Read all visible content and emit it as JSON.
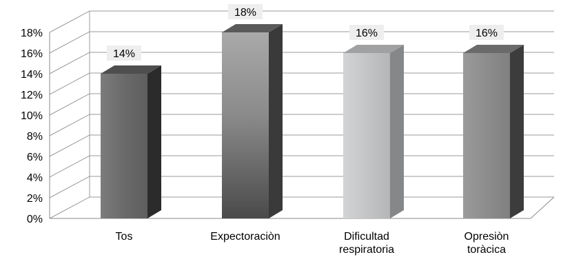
{
  "chart_data": {
    "type": "bar",
    "title": "",
    "xlabel": "",
    "ylabel": "",
    "categories": [
      "Tos",
      "Expectoraciòn",
      "Dificultad respiratoria",
      "Opresiòn toràcica"
    ],
    "category_lines": [
      [
        "Tos"
      ],
      [
        "Expectoraciòn"
      ],
      [
        "Dificultad",
        "respiratoria"
      ],
      [
        "Opresiòn",
        "toràcica"
      ]
    ],
    "values": [
      14,
      18,
      16,
      16
    ],
    "data_labels": [
      "14%",
      "18%",
      "16%",
      "16%"
    ],
    "ylim": [
      0,
      18
    ],
    "yticks": [
      "0%",
      "2%",
      "4%",
      "6%",
      "8%",
      "10%",
      "12%",
      "14%",
      "16%",
      "18%"
    ],
    "grid": true,
    "legend": "none",
    "style": "3d-column",
    "bar_colors": [
      "#6f6f6f",
      "#8c8c8c",
      "#c4c6c7",
      "#8f8f8f"
    ]
  }
}
